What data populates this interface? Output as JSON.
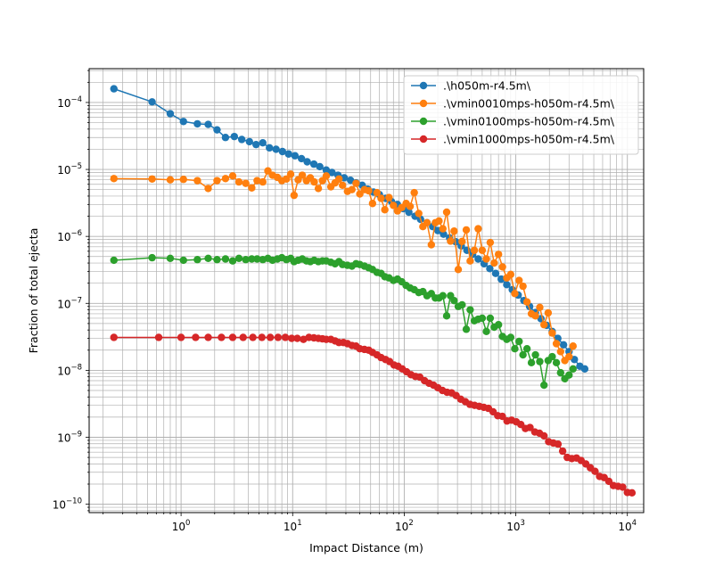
{
  "chart_data": {
    "type": "line",
    "title": "",
    "xlabel": "Impact Distance (m)",
    "ylabel": "Fraction of total ejecta",
    "xscale": "log",
    "yscale": "log",
    "xlim": [
      0.15,
      14000
    ],
    "ylim": [
      7.5e-11,
      0.00032
    ],
    "grid": "major and minor",
    "legend_position": "top-right",
    "x_tick_labels": [
      {
        "value": 1,
        "label": "10",
        "exp": "0"
      },
      {
        "value": 10,
        "label": "10",
        "exp": "1"
      },
      {
        "value": 100,
        "label": "10",
        "exp": "2"
      },
      {
        "value": 1000,
        "label": "10",
        "exp": "3"
      },
      {
        "value": 10000,
        "label": "10",
        "exp": "4"
      }
    ],
    "y_tick_labels": [
      {
        "value": 0.0001,
        "label": "10",
        "exp": "−4"
      },
      {
        "value": 1e-05,
        "label": "10",
        "exp": "−5"
      },
      {
        "value": 1e-06,
        "label": "10",
        "exp": "−6"
      },
      {
        "value": 1e-07,
        "label": "10",
        "exp": "−7"
      },
      {
        "value": 1e-08,
        "label": "10",
        "exp": "−8"
      },
      {
        "value": 1e-09,
        "label": "10",
        "exp": "−9"
      },
      {
        "value": 1e-10,
        "label": "10",
        "exp": "−10"
      }
    ],
    "series": [
      {
        "name": ".\\h050m-r4.5m\\",
        "color": "#1f77b4",
        "x": [
          0.25,
          0.55,
          0.8,
          1.05,
          1.4,
          1.75,
          2.1,
          2.5,
          3.0,
          3.5,
          4.1,
          4.7,
          5.4,
          6.2,
          7.1,
          8.1,
          9.2,
          10.5,
          12,
          13.5,
          15.5,
          17.5,
          20,
          22.5,
          25.5,
          29,
          33,
          37,
          42,
          47,
          53,
          60,
          68,
          77,
          87,
          98,
          110,
          125,
          140,
          160,
          180,
          200,
          225,
          255,
          290,
          325,
          365,
          410,
          460,
          520,
          585,
          660,
          740,
          830,
          930,
          1050,
          1180,
          1330,
          1500,
          1680,
          1890,
          2120,
          2380,
          2680,
          3000,
          3350,
          3750,
          4150
        ],
        "y": [
          0.00016,
          0.000102,
          6.8e-05,
          5.2e-05,
          4.8e-05,
          4.7e-05,
          3.9e-05,
          3e-05,
          3.1e-05,
          2.8e-05,
          2.6e-05,
          2.35e-05,
          2.5e-05,
          2.1e-05,
          2e-05,
          1.85e-05,
          1.7e-05,
          1.6e-05,
          1.45e-05,
          1.3e-05,
          1.2e-05,
          1.1e-05,
          9.8e-06,
          9e-06,
          8.2e-06,
          7.5e-06,
          6.9e-06,
          6.3e-06,
          5.8e-06,
          5.1e-06,
          4.6e-06,
          4.2e-06,
          3.7e-06,
          3.3e-06,
          3e-06,
          2.6e-06,
          2.3e-06,
          2e-06,
          1.8e-06,
          1.6e-06,
          1.4e-06,
          1.22e-06,
          1.08e-06,
          9.5e-07,
          8.3e-07,
          7.2e-07,
          6.2e-07,
          5.4e-07,
          4.6e-07,
          3.9e-07,
          3.3e-07,
          2.8e-07,
          2.3e-07,
          1.9e-07,
          1.6e-07,
          1.33e-07,
          1.1e-07,
          9e-08,
          7.3e-08,
          5.9e-08,
          4.7e-08,
          3.8e-08,
          3e-08,
          2.4e-08,
          1.9e-08,
          1.45e-08,
          1.15e-08,
          1.05e-08
        ]
      },
      {
        "name": ".\\vmin0010mps-h050m-r4.5m\\",
        "color": "#ff7f0e",
        "x": [
          0.25,
          0.55,
          0.8,
          1.05,
          1.4,
          1.75,
          2.1,
          2.5,
          2.9,
          3.3,
          3.8,
          4.3,
          4.8,
          5.4,
          6.0,
          6.6,
          7.3,
          8.0,
          8.8,
          9.6,
          10.3,
          11.2,
          12.2,
          13.3,
          14.4,
          15.6,
          17,
          18.5,
          20,
          22,
          24,
          26,
          28,
          31,
          34,
          37,
          40,
          44,
          48,
          52,
          57,
          62,
          67,
          73,
          80,
          87,
          95,
          104,
          113,
          123,
          135,
          147,
          160,
          175,
          190,
          205,
          222,
          240,
          260,
          280,
          305,
          330,
          360,
          390,
          425,
          460,
          500,
          545,
          590,
          640,
          700,
          760,
          830,
          900,
          980,
          1070,
          1160,
          1260,
          1380,
          1500,
          1640,
          1790,
          1950,
          2120,
          2310,
          2520,
          2750,
          3000,
          3260
        ],
        "y": [
          7.3e-06,
          7.2e-06,
          7e-06,
          7.1e-06,
          6.8e-06,
          5.2e-06,
          6.8e-06,
          7.3e-06,
          8e-06,
          6.5e-06,
          6.2e-06,
          5.3e-06,
          6.8e-06,
          6.5e-06,
          9.5e-06,
          8.2e-06,
          7.6e-06,
          6.8e-06,
          7.2e-06,
          8.5e-06,
          4.1e-06,
          7e-06,
          8.2e-06,
          6.8e-06,
          7.5e-06,
          6.5e-06,
          5.2e-06,
          6.8e-06,
          8e-06,
          5.5e-06,
          6.3e-06,
          7.2e-06,
          5.8e-06,
          4.7e-06,
          5e-06,
          6.2e-06,
          4.3e-06,
          5e-06,
          4.8e-06,
          3.1e-06,
          4.5e-06,
          3.7e-06,
          2.5e-06,
          3.8e-06,
          2.9e-06,
          2.4e-06,
          2.7e-06,
          3.1e-06,
          2.8e-06,
          4.5e-06,
          2.2e-06,
          1.4e-06,
          1.6e-06,
          7.5e-07,
          1.6e-06,
          1.7e-06,
          1.3e-06,
          2.3e-06,
          8.5e-07,
          1.2e-06,
          3.2e-07,
          8.4e-07,
          1.25e-06,
          4.3e-07,
          6.2e-07,
          1.3e-06,
          6.2e-07,
          4.6e-07,
          8.1e-07,
          4e-07,
          5.4e-07,
          3.5e-07,
          2.4e-07,
          2.7e-07,
          1.4e-07,
          2.2e-07,
          1.8e-07,
          1.05e-07,
          7e-08,
          6.5e-08,
          8.7e-08,
          4.8e-08,
          7.2e-08,
          3.6e-08,
          2.5e-08,
          1.9e-08,
          1.4e-08,
          1.6e-08,
          2.3e-08
        ]
      },
      {
        "name": ".\\vmin0100mps-h050m-r4.5m\\",
        "color": "#2ca02c",
        "x": [
          0.25,
          0.55,
          0.8,
          1.05,
          1.4,
          1.75,
          2.1,
          2.5,
          2.9,
          3.3,
          3.8,
          4.3,
          4.8,
          5.4,
          6.0,
          6.6,
          7.3,
          8.0,
          8.8,
          9.6,
          10.3,
          11.2,
          12.2,
          13.3,
          14.4,
          15.6,
          17,
          18.5,
          20,
          22,
          24,
          26,
          28,
          31,
          34,
          37,
          40,
          44,
          48,
          52,
          57,
          62,
          67,
          73,
          80,
          87,
          95,
          104,
          113,
          123,
          135,
          147,
          160,
          175,
          190,
          205,
          222,
          240,
          260,
          280,
          305,
          330,
          360,
          390,
          425,
          460,
          500,
          545,
          590,
          640,
          700,
          760,
          830,
          900,
          980,
          1070,
          1160,
          1260,
          1380,
          1500,
          1640,
          1790,
          1950,
          2120,
          2310,
          2520,
          2750,
          3000,
          3260
        ],
        "y": [
          4.4e-07,
          4.8e-07,
          4.7e-07,
          4.4e-07,
          4.5e-07,
          4.7e-07,
          4.5e-07,
          4.6e-07,
          4.3e-07,
          4.7e-07,
          4.5e-07,
          4.6e-07,
          4.6e-07,
          4.5e-07,
          4.7e-07,
          4.4e-07,
          4.6e-07,
          4.8e-07,
          4.5e-07,
          4.7e-07,
          4.2e-07,
          4.4e-07,
          4.6e-07,
          4.3e-07,
          4.2e-07,
          4.4e-07,
          4.2e-07,
          4.3e-07,
          4.3e-07,
          4.1e-07,
          3.9e-07,
          4.2e-07,
          3.8e-07,
          3.7e-07,
          3.6e-07,
          3.9e-07,
          3.8e-07,
          3.6e-07,
          3.4e-07,
          3.2e-07,
          2.9e-07,
          2.8e-07,
          2.5e-07,
          2.4e-07,
          2.2e-07,
          2.3e-07,
          2.1e-07,
          1.85e-07,
          1.7e-07,
          1.6e-07,
          1.45e-07,
          1.5e-07,
          1.3e-07,
          1.4e-07,
          1.2e-07,
          1.2e-07,
          1.3e-07,
          6.5e-08,
          1.3e-07,
          1.1e-07,
          9e-08,
          9.5e-08,
          4.1e-08,
          8e-08,
          5.5e-08,
          5.8e-08,
          6e-08,
          3.8e-08,
          6e-08,
          4.4e-08,
          4.8e-08,
          3.2e-08,
          2.9e-08,
          3.1e-08,
          2.1e-08,
          2.7e-08,
          1.7e-08,
          2.1e-08,
          1.3e-08,
          1.7e-08,
          1.35e-08,
          6e-09,
          1.4e-08,
          1.6e-08,
          1.3e-08,
          9.2e-09,
          7.5e-09,
          8.5e-09,
          1.05e-08
        ]
      },
      {
        "name": ".\\vmin1000mps-h050m-r4.5m\\",
        "color": "#d62728",
        "x": [
          0.25,
          0.63,
          1.0,
          1.35,
          1.75,
          2.3,
          2.9,
          3.6,
          4.4,
          5.3,
          6.3,
          7.4,
          8.6,
          9.8,
          11,
          12.5,
          14,
          15.5,
          17,
          18.5,
          20,
          22,
          24,
          26,
          28.5,
          31,
          34,
          37,
          40,
          44,
          48,
          52,
          57,
          62,
          68,
          74,
          81,
          88,
          96,
          105,
          115,
          126,
          138,
          152,
          167,
          183,
          200,
          220,
          242,
          266,
          292,
          321,
          353,
          388,
          427,
          470,
          517,
          569,
          626,
          689,
          758,
          834,
          917,
          1010,
          1110,
          1220,
          1340,
          1480,
          1630,
          1790,
          1970,
          2170,
          2390,
          2630,
          2890,
          3180,
          3500,
          3850,
          4240,
          4660,
          5130,
          5640,
          6200,
          6820,
          7500,
          8250,
          9080,
          10000,
          11000
        ],
        "y": [
          3.1e-08,
          3.1e-08,
          3.1e-08,
          3.1e-08,
          3.1e-08,
          3.1e-08,
          3.1e-08,
          3.1e-08,
          3.1e-08,
          3.1e-08,
          3.1e-08,
          3.1e-08,
          3.1e-08,
          3e-08,
          3e-08,
          2.9e-08,
          3.1e-08,
          3.05e-08,
          3e-08,
          2.95e-08,
          2.9e-08,
          2.9e-08,
          2.75e-08,
          2.6e-08,
          2.6e-08,
          2.5e-08,
          2.35e-08,
          2.3e-08,
          2.1e-08,
          2.05e-08,
          2e-08,
          1.85e-08,
          1.7e-08,
          1.55e-08,
          1.45e-08,
          1.35e-08,
          1.2e-08,
          1.15e-08,
          1.05e-08,
          9.5e-09,
          8.6e-09,
          8.1e-09,
          7.9e-09,
          7e-09,
          6.4e-09,
          6e-09,
          5.5e-09,
          5e-09,
          4.7e-09,
          4.6e-09,
          4.2e-09,
          3.7e-09,
          3.4e-09,
          3.1e-09,
          3e-09,
          2.9e-09,
          2.8e-09,
          2.7e-09,
          2.4e-09,
          2.1e-09,
          2.05e-09,
          1.75e-09,
          1.8e-09,
          1.7e-09,
          1.55e-09,
          1.35e-09,
          1.4e-09,
          1.2e-09,
          1.15e-09,
          1.05e-09,
          8.6e-10,
          8.2e-10,
          7.9e-10,
          6.2e-10,
          5e-10,
          4.8e-10,
          4.9e-10,
          4.5e-10,
          4e-10,
          3.5e-10,
          3.1e-10,
          2.6e-10,
          2.5e-10,
          2.2e-10,
          1.9e-10,
          1.85e-10,
          1.8e-10,
          1.5e-10,
          1.48e-10
        ]
      }
    ]
  }
}
